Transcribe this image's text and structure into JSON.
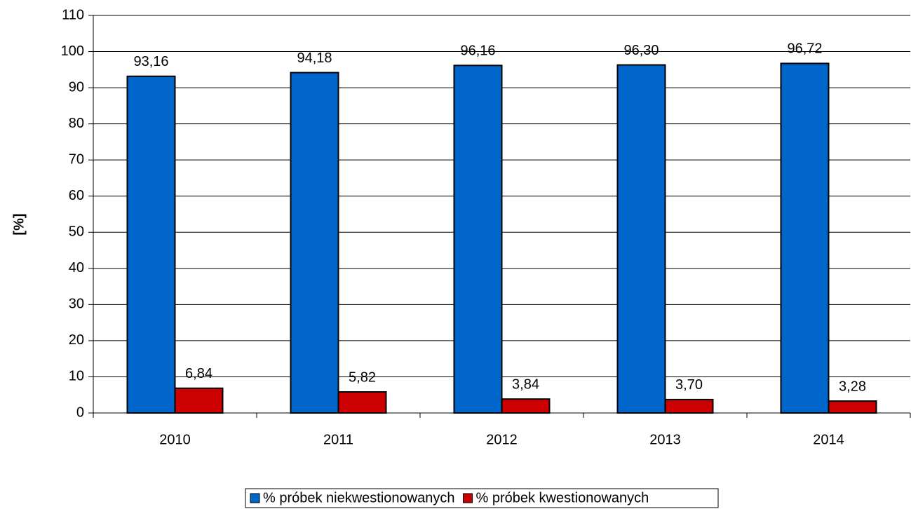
{
  "chart_data": {
    "type": "bar",
    "y_label": "[%]",
    "categories": [
      "2010",
      "2011",
      "2012",
      "2013",
      "2014"
    ],
    "series": [
      {
        "name": "% próbek niekwestionowanych",
        "color": "#0066cc",
        "values": [
          93.16,
          94.18,
          96.16,
          96.3,
          96.72
        ],
        "value_labels": [
          "93,16",
          "94,18",
          "96,16",
          "96,30",
          "96,72"
        ]
      },
      {
        "name": "% próbek kwestionowanych",
        "color": "#cc0000",
        "values": [
          6.84,
          5.82,
          3.84,
          3.7,
          3.28
        ],
        "value_labels": [
          "6,84",
          "5,82",
          "3,84",
          "3,70",
          "3,28"
        ]
      }
    ],
    "ylim": [
      0,
      110
    ],
    "yticks": [
      0,
      10,
      20,
      30,
      40,
      50,
      60,
      70,
      80,
      90,
      100,
      110
    ],
    "grid": true,
    "legend": "bottom"
  }
}
